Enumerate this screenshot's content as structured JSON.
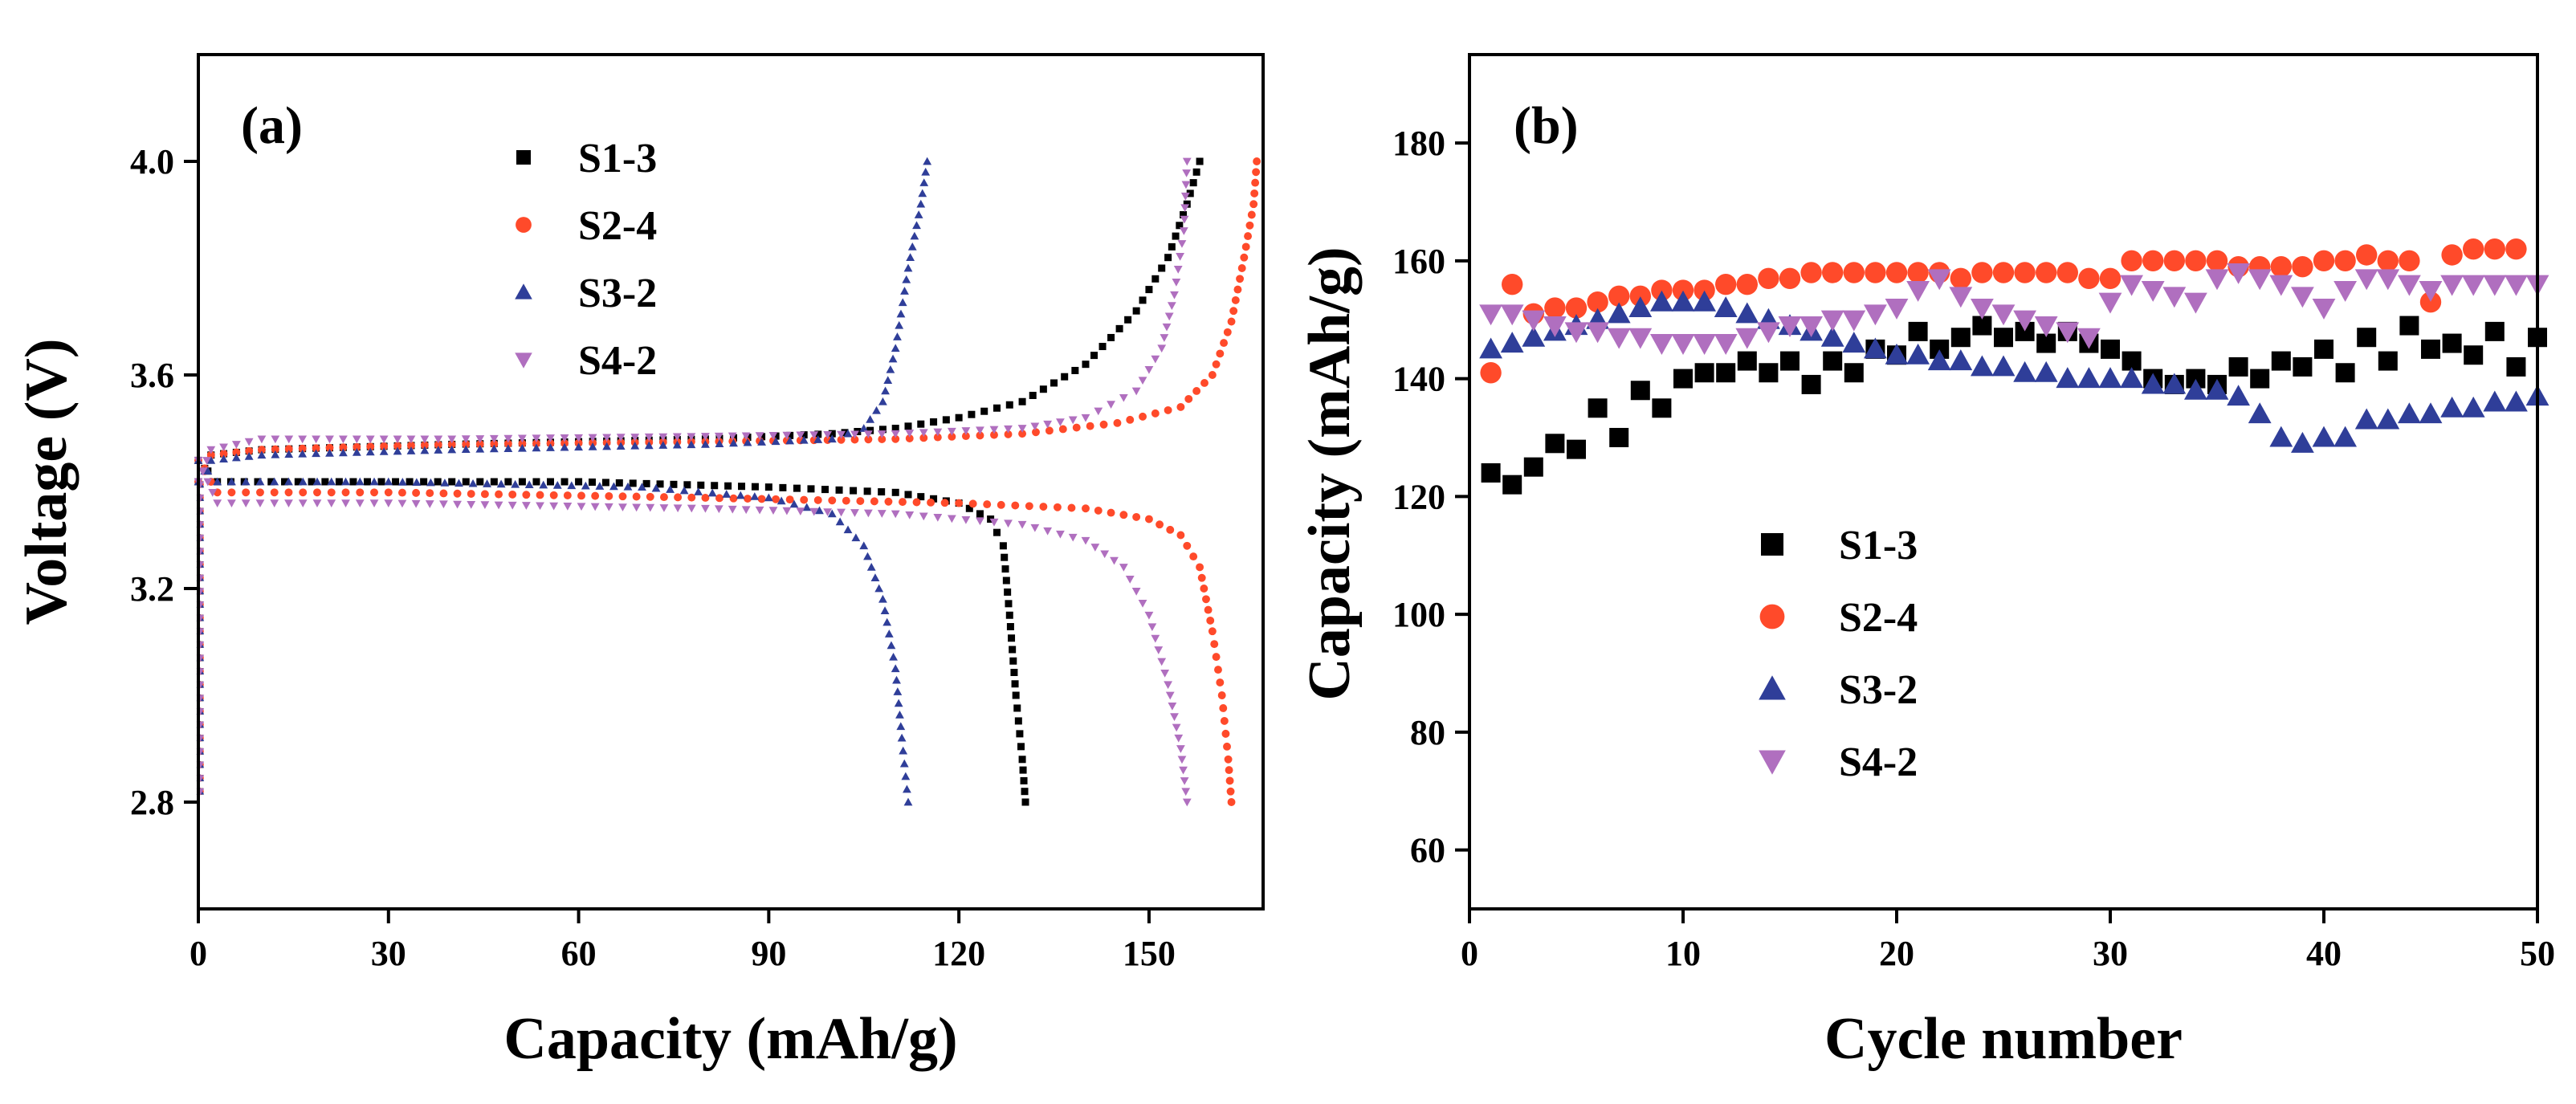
{
  "chart_data": [
    {
      "panel": "(a)",
      "type": "line",
      "xlabel": "Capacity (mAh/g)",
      "ylabel": "Voltage (V)",
      "xlim": [
        0,
        168
      ],
      "ylim": [
        2.6,
        4.2
      ],
      "xticks": [
        "0",
        "30",
        "60",
        "90",
        "120",
        "150"
      ],
      "yticks": [
        "2.8",
        "3.2",
        "3.6",
        "4.0"
      ],
      "legend": [
        "S1-3",
        "S2-4",
        "S3-2",
        "S4-2"
      ],
      "series": [
        {
          "name": "S1-3",
          "color": "#000000",
          "marker": "square",
          "charge_pts": [
            [
              0,
              3.4
            ],
            [
              2,
              3.45
            ],
            [
              10,
              3.46
            ],
            [
              40,
              3.47
            ],
            [
              80,
              3.48
            ],
            [
              100,
              3.49
            ],
            [
              110,
              3.5
            ],
            [
              120,
              3.52
            ],
            [
              130,
              3.55
            ],
            [
              140,
              3.62
            ],
            [
              148,
              3.72
            ],
            [
              153,
              3.82
            ],
            [
              156,
              3.92
            ],
            [
              158,
              4.0
            ]
          ],
          "discharge_pts": [
            [
              0,
              3.44
            ],
            [
              3,
              3.4
            ],
            [
              20,
              3.4
            ],
            [
              60,
              3.4
            ],
            [
              90,
              3.39
            ],
            [
              110,
              3.38
            ],
            [
              120,
              3.36
            ],
            [
              125,
              3.33
            ],
            [
              127,
              3.28
            ],
            [
              128,
              3.15
            ],
            [
              129,
              3.0
            ],
            [
              130,
              2.88
            ],
            [
              130.5,
              2.8
            ]
          ]
        },
        {
          "name": "S2-4",
          "color": "#ff4a2a",
          "marker": "circle",
          "charge_pts": [
            [
              0,
              3.4
            ],
            [
              2,
              3.45
            ],
            [
              10,
              3.46
            ],
            [
              40,
              3.47
            ],
            [
              80,
              3.475
            ],
            [
              110,
              3.48
            ],
            [
              130,
              3.49
            ],
            [
              145,
              3.51
            ],
            [
              155,
              3.54
            ],
            [
              160,
              3.6
            ],
            [
              163,
              3.7
            ],
            [
              165,
              3.82
            ],
            [
              166.5,
              3.92
            ],
            [
              167,
              4.0
            ]
          ],
          "discharge_pts": [
            [
              0,
              3.44
            ],
            [
              3,
              3.38
            ],
            [
              30,
              3.38
            ],
            [
              80,
              3.37
            ],
            [
              120,
              3.36
            ],
            [
              140,
              3.35
            ],
            [
              150,
              3.33
            ],
            [
              155,
              3.3
            ],
            [
              158,
              3.24
            ],
            [
              160,
              3.12
            ],
            [
              161.5,
              3.0
            ],
            [
              162.5,
              2.88
            ],
            [
              163,
              2.8
            ]
          ]
        },
        {
          "name": "S3-2",
          "color": "#2f3e99",
          "marker": "triangle-up",
          "charge_pts": [
            [
              0,
              3.4
            ],
            [
              2,
              3.44
            ],
            [
              10,
              3.45
            ],
            [
              40,
              3.46
            ],
            [
              80,
              3.47
            ],
            [
              100,
              3.48
            ],
            [
              105,
              3.5
            ],
            [
              108,
              3.55
            ],
            [
              110,
              3.65
            ],
            [
              112,
              3.8
            ],
            [
              114,
              3.92
            ],
            [
              115,
              4.0
            ]
          ],
          "discharge_pts": [
            [
              0,
              3.44
            ],
            [
              3,
              3.4
            ],
            [
              30,
              3.4
            ],
            [
              70,
              3.39
            ],
            [
              90,
              3.37
            ],
            [
              100,
              3.34
            ],
            [
              105,
              3.28
            ],
            [
              108,
              3.18
            ],
            [
              110,
              3.05
            ],
            [
              111,
              2.92
            ],
            [
              112,
              2.8
            ]
          ]
        },
        {
          "name": "S4-2",
          "color": "#b06fbf",
          "marker": "triangle-down",
          "charge_pts": [
            [
              0,
              3.4
            ],
            [
              2,
              3.46
            ],
            [
              10,
              3.48
            ],
            [
              40,
              3.48
            ],
            [
              80,
              3.485
            ],
            [
              110,
              3.49
            ],
            [
              130,
              3.5
            ],
            [
              140,
              3.52
            ],
            [
              148,
              3.57
            ],
            [
              152,
              3.65
            ],
            [
              154,
              3.75
            ],
            [
              155.5,
              3.87
            ],
            [
              156,
              4.0
            ]
          ],
          "discharge_pts": [
            [
              0,
              3.44
            ],
            [
              3,
              3.36
            ],
            [
              30,
              3.36
            ],
            [
              80,
              3.35
            ],
            [
              110,
              3.34
            ],
            [
              130,
              3.32
            ],
            [
              140,
              3.29
            ],
            [
              146,
              3.24
            ],
            [
              150,
              3.15
            ],
            [
              153,
              3.02
            ],
            [
              155,
              2.9
            ],
            [
              156,
              2.8
            ]
          ]
        }
      ]
    },
    {
      "panel": "(b)",
      "type": "scatter",
      "xlabel": "Cycle number",
      "ylabel": "Capacity (mAh/g)",
      "xlim": [
        0,
        50
      ],
      "ylim": [
        50,
        195
      ],
      "xticks": [
        "0",
        "10",
        "20",
        "30",
        "40",
        "50"
      ],
      "yticks": [
        "60",
        "80",
        "100",
        "120",
        "140",
        "160",
        "180"
      ],
      "legend": [
        "S1-3",
        "S2-4",
        "S3-2",
        "S4-2"
      ],
      "series": [
        {
          "name": "S1-3",
          "color": "#000000",
          "marker": "square",
          "x": [
            1,
            2,
            3,
            4,
            5,
            6,
            7,
            8,
            9,
            10,
            11,
            12,
            13,
            14,
            15,
            16,
            17,
            18,
            19,
            20,
            21,
            22,
            23,
            24,
            25,
            26,
            27,
            28,
            29,
            30,
            31,
            32,
            33,
            34,
            35,
            36,
            37,
            38,
            39,
            40,
            41,
            42,
            43,
            44,
            45,
            46,
            47,
            48,
            49,
            50
          ],
          "values": [
            124,
            122,
            125,
            129,
            128,
            135,
            130,
            138,
            135,
            140,
            141,
            141,
            143,
            141,
            143,
            139,
            143,
            141,
            145,
            144,
            148,
            145,
            147,
            149,
            147,
            148,
            146,
            148,
            146,
            145,
            143,
            140,
            139,
            140,
            139,
            142,
            140,
            143,
            142,
            145,
            141,
            147,
            143,
            149,
            145,
            146,
            144,
            148,
            142,
            147
          ]
        },
        {
          "name": "S2-4",
          "color": "#ff4a2a",
          "marker": "circle",
          "x": [
            1,
            2,
            3,
            4,
            5,
            6,
            7,
            8,
            9,
            10,
            11,
            12,
            13,
            14,
            15,
            16,
            17,
            18,
            19,
            20,
            21,
            22,
            23,
            24,
            25,
            26,
            27,
            28,
            29,
            30,
            31,
            32,
            33,
            34,
            35,
            36,
            37,
            38,
            39,
            40,
            41,
            42,
            43,
            44,
            45,
            46,
            47,
            48,
            49
          ],
          "values": [
            141,
            156,
            151,
            152,
            152,
            153,
            154,
            154,
            155,
            155,
            155,
            156,
            156,
            157,
            157,
            158,
            158,
            158,
            158,
            158,
            158,
            158,
            157,
            158,
            158,
            158,
            158,
            158,
            157,
            157,
            160,
            160,
            160,
            160,
            160,
            159,
            159,
            159,
            159,
            160,
            160,
            161,
            160,
            160,
            153,
            161,
            162,
            162,
            162
          ]
        },
        {
          "name": "S3-2",
          "color": "#2f3e99",
          "marker": "triangle-up",
          "x": [
            1,
            2,
            3,
            4,
            5,
            6,
            7,
            8,
            9,
            10,
            11,
            12,
            13,
            14,
            15,
            16,
            17,
            18,
            19,
            20,
            21,
            22,
            23,
            24,
            25,
            26,
            27,
            28,
            29,
            30,
            31,
            32,
            33,
            34,
            35,
            36,
            37,
            38,
            39,
            40,
            41,
            42,
            43,
            44,
            45,
            46,
            47,
            48,
            49,
            50
          ],
          "values": [
            145,
            146,
            147,
            148,
            149,
            150,
            151,
            152,
            153,
            153,
            153,
            152,
            151,
            150,
            149,
            148,
            147,
            146,
            145,
            144,
            144,
            143,
            143,
            142,
            142,
            141,
            141,
            140,
            140,
            140,
            140,
            139,
            139,
            138,
            138,
            137,
            134,
            130,
            129,
            130,
            130,
            133,
            133,
            134,
            134,
            135,
            135,
            136,
            136,
            137
          ]
        },
        {
          "name": "S4-2",
          "color": "#b06fbf",
          "marker": "triangle-down",
          "x": [
            1,
            2,
            3,
            4,
            5,
            6,
            7,
            8,
            9,
            10,
            11,
            12,
            13,
            14,
            15,
            16,
            17,
            18,
            19,
            20,
            21,
            22,
            23,
            24,
            25,
            26,
            27,
            28,
            29,
            30,
            31,
            32,
            33,
            34,
            35,
            36,
            37,
            38,
            39,
            40,
            41,
            42,
            43,
            44,
            45,
            46,
            47,
            48,
            49,
            50
          ],
          "values": [
            151,
            151,
            150,
            149,
            148,
            148,
            147,
            147,
            146,
            146,
            146,
            146,
            147,
            148,
            149,
            149,
            150,
            150,
            151,
            152,
            155,
            157,
            154,
            152,
            151,
            150,
            149,
            148,
            147,
            153,
            156,
            155,
            154,
            153,
            157,
            158,
            157,
            156,
            154,
            152,
            155,
            157,
            157,
            156,
            155,
            156,
            156,
            156,
            156,
            156
          ]
        }
      ]
    }
  ]
}
